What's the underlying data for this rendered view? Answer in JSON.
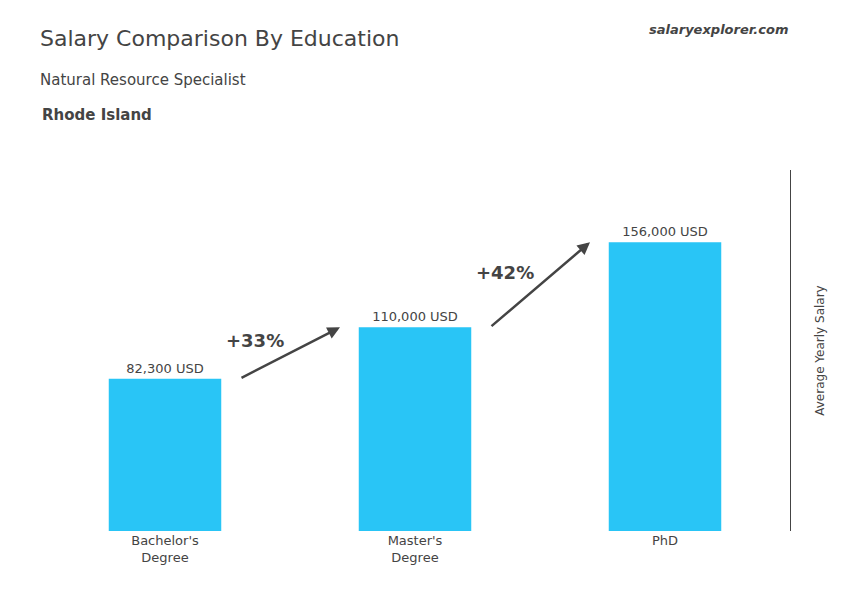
{
  "chart_data": {
    "type": "bar",
    "title": "Salary Comparison By Education",
    "subtitle": "Natural Resource Specialist",
    "ylabel": "Average Yearly Salary",
    "categories": [
      "Bachelor's\nDegree",
      "Master's\nDegree",
      "PhD"
    ],
    "values": [
      82300,
      110000,
      156000
    ],
    "value_labels": [
      "82,300 USD",
      "110,000 USD",
      "156,000 USD"
    ],
    "data_labels": true,
    "color": "#29c5f6",
    "ylim": [
      0,
      195000
    ],
    "yticks": [],
    "tick_labels": "x",
    "grid": false,
    "annotations": [
      {
        "text": "Rhode Island"
      },
      {
        "text": "salaryexplorer.com"
      },
      {
        "text": "+33%",
        "from": "Bachelor's\nDegree",
        "to": "Master's\nDegree"
      },
      {
        "text": "+42%",
        "from": "Master's\nDegree",
        "to": "PhD"
      }
    ]
  }
}
